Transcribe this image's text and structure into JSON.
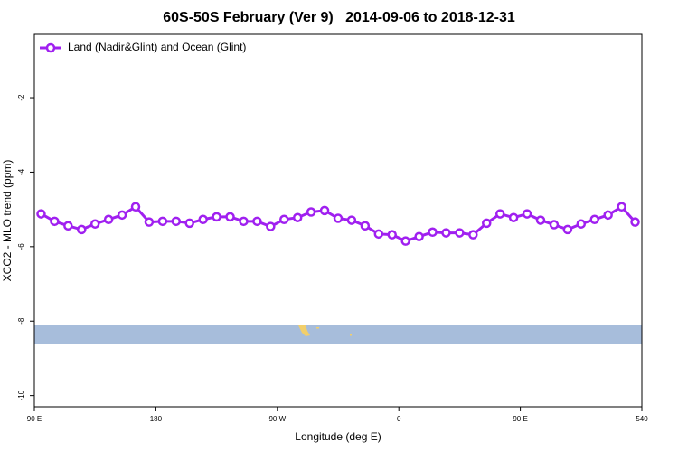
{
  "chart_data": {
    "type": "line",
    "title": "60S-50S February (Ver 9)   2014-09-06 to 2018-12-31",
    "x_label": "Longitude (deg E)",
    "y_label": "XCO2 - MLO trend (ppm)",
    "xlim": [
      90,
      540
    ],
    "xticks": [
      {
        "value": 90,
        "label": "90 E"
      },
      180,
      {
        "value": 270,
        "label": "90 W"
      },
      {
        "value": 360,
        "label": "0"
      },
      {
        "value": 450,
        "label": "90 E"
      },
      540
    ],
    "ylim": [
      -10.3,
      -0.3
    ],
    "yticks": [
      -10,
      -8,
      -6,
      -4,
      -2
    ],
    "legend_position": "top-left",
    "x": [
      95,
      105,
      115,
      125,
      135,
      145,
      155,
      165,
      175,
      185,
      195,
      205,
      215,
      225,
      235,
      245,
      255,
      265,
      275,
      285,
      295,
      305,
      315,
      325,
      335,
      345,
      355,
      365,
      375,
      385,
      395,
      405,
      415,
      425,
      435,
      445,
      455,
      465,
      475,
      485,
      495,
      505,
      515,
      525,
      535
    ],
    "series": [
      {
        "name": "Land (Nadir&Glint) and Ocean (Glint)",
        "color": "#a020f0",
        "values": [
          -5.12,
          -5.32,
          -5.44,
          -5.54,
          -5.39,
          -5.27,
          -5.15,
          -4.93,
          -5.34,
          -5.32,
          -5.32,
          -5.37,
          -5.27,
          -5.2,
          -5.2,
          -5.32,
          -5.32,
          -5.46,
          -5.27,
          -5.22,
          -5.07,
          -5.03,
          -5.24,
          -5.29,
          -5.44,
          -5.66,
          -5.68,
          -5.85,
          -5.73,
          -5.61,
          -5.63,
          -5.63,
          -5.68,
          -5.37,
          -5.12,
          -5.22,
          -5.12,
          -5.29,
          -5.41,
          -5.54,
          -5.39,
          -5.27,
          -5.15,
          -4.93,
          -5.34
        ]
      }
    ]
  }
}
